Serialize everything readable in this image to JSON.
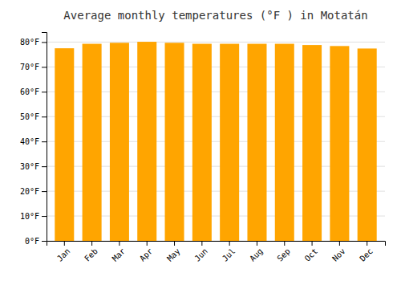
{
  "chart_data": {
    "type": "bar",
    "title": "Average monthly temperatures (°F ) in Motatán",
    "categories": [
      "Jan",
      "Feb",
      "Mar",
      "Apr",
      "May",
      "Jun",
      "Jul",
      "Aug",
      "Sep",
      "Oct",
      "Nov",
      "Dec"
    ],
    "values": [
      77.5,
      79.3,
      79.7,
      80.1,
      79.7,
      79.3,
      79.3,
      79.3,
      79.3,
      78.8,
      78.4,
      77.4
    ],
    "color": "#FFA500",
    "ylim": [
      0,
      84
    ],
    "yticks": [
      {
        "value": 0,
        "label": "0°F"
      },
      {
        "value": 10,
        "label": "10°F"
      },
      {
        "value": 20,
        "label": "20°F"
      },
      {
        "value": 30,
        "label": "30°F"
      },
      {
        "value": 40,
        "label": "40°F"
      },
      {
        "value": 50,
        "label": "50°F"
      },
      {
        "value": 60,
        "label": "60°F"
      },
      {
        "value": 70,
        "label": "70°F"
      },
      {
        "value": 80,
        "label": "80°F"
      }
    ],
    "grid": true
  }
}
